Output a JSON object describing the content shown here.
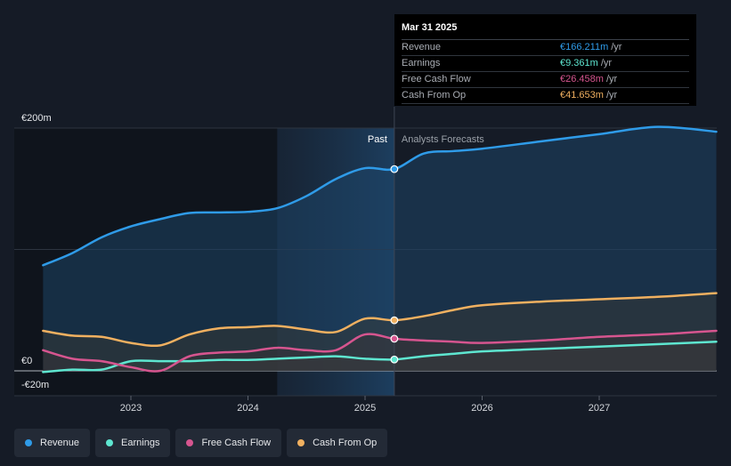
{
  "chart_data": {
    "type": "area",
    "currency_unit": "€m",
    "y_axis": {
      "min": -20,
      "max": 200,
      "labels": [
        "€200m",
        "€0",
        "-€20m"
      ]
    },
    "x_axis": {
      "ticks": [
        "2023",
        "2024",
        "2025",
        "2026",
        "2027"
      ]
    },
    "divider_date": 2025.25,
    "past_label": "Past",
    "forecast_label": "Analysts Forecasts",
    "series": [
      {
        "name": "Revenue",
        "color": "#2f9be8",
        "points": [
          [
            2022.25,
            87
          ],
          [
            2022.5,
            97
          ],
          [
            2022.75,
            110
          ],
          [
            2023.0,
            119
          ],
          [
            2023.25,
            125
          ],
          [
            2023.5,
            130
          ],
          [
            2023.75,
            130.5
          ],
          [
            2024.0,
            131
          ],
          [
            2024.25,
            134
          ],
          [
            2024.5,
            144
          ],
          [
            2024.75,
            158
          ],
          [
            2025.0,
            167
          ],
          [
            2025.25,
            166.211
          ],
          [
            2025.5,
            179
          ],
          [
            2025.75,
            181
          ],
          [
            2026.0,
            183
          ],
          [
            2026.5,
            189
          ],
          [
            2027.0,
            195
          ],
          [
            2027.5,
            201
          ],
          [
            2028.0,
            197
          ]
        ]
      },
      {
        "name": "Earnings",
        "color": "#5ee6d0",
        "points": [
          [
            2022.25,
            -1
          ],
          [
            2022.5,
            1
          ],
          [
            2022.75,
            1
          ],
          [
            2023.0,
            8
          ],
          [
            2023.25,
            8
          ],
          [
            2023.5,
            8
          ],
          [
            2023.75,
            9
          ],
          [
            2024.0,
            9
          ],
          [
            2024.25,
            10
          ],
          [
            2024.5,
            11
          ],
          [
            2024.75,
            12
          ],
          [
            2025.0,
            10
          ],
          [
            2025.25,
            9.361
          ],
          [
            2025.5,
            12
          ],
          [
            2025.75,
            14
          ],
          [
            2026.0,
            16
          ],
          [
            2026.5,
            18
          ],
          [
            2027.0,
            20
          ],
          [
            2027.5,
            22
          ],
          [
            2028.0,
            24
          ]
        ]
      },
      {
        "name": "Free Cash Flow",
        "color": "#d6558f",
        "points": [
          [
            2022.25,
            17
          ],
          [
            2022.5,
            10
          ],
          [
            2022.75,
            8
          ],
          [
            2023.0,
            3
          ],
          [
            2023.25,
            0
          ],
          [
            2023.5,
            12
          ],
          [
            2023.75,
            15
          ],
          [
            2024.0,
            16
          ],
          [
            2024.25,
            19
          ],
          [
            2024.5,
            17
          ],
          [
            2024.75,
            17
          ],
          [
            2025.0,
            30
          ],
          [
            2025.25,
            26.458
          ],
          [
            2025.5,
            25
          ],
          [
            2025.75,
            24
          ],
          [
            2026.0,
            23
          ],
          [
            2026.5,
            25
          ],
          [
            2027.0,
            28
          ],
          [
            2027.5,
            30
          ],
          [
            2028.0,
            33
          ]
        ]
      },
      {
        "name": "Cash From Op",
        "color": "#f0b060",
        "points": [
          [
            2022.25,
            33
          ],
          [
            2022.5,
            29
          ],
          [
            2022.75,
            28
          ],
          [
            2023.0,
            23
          ],
          [
            2023.25,
            21
          ],
          [
            2023.5,
            30
          ],
          [
            2023.75,
            35
          ],
          [
            2024.0,
            36
          ],
          [
            2024.25,
            37
          ],
          [
            2024.5,
            34
          ],
          [
            2024.75,
            32
          ],
          [
            2025.0,
            43
          ],
          [
            2025.25,
            41.653
          ],
          [
            2025.5,
            45
          ],
          [
            2025.75,
            50
          ],
          [
            2026.0,
            54
          ],
          [
            2026.5,
            57
          ],
          [
            2027.0,
            59
          ],
          [
            2027.5,
            61
          ],
          [
            2028.0,
            64
          ]
        ]
      }
    ]
  },
  "tooltip": {
    "date": "Mar 31 2025",
    "rows": [
      {
        "label": "Revenue",
        "value": "€166.211m",
        "unit": "/yr",
        "color": "#2f9be8"
      },
      {
        "label": "Earnings",
        "value": "€9.361m",
        "unit": "/yr",
        "color": "#5ee6d0"
      },
      {
        "label": "Free Cash Flow",
        "value": "€26.458m",
        "unit": "/yr",
        "color": "#d6558f"
      },
      {
        "label": "Cash From Op",
        "value": "€41.653m",
        "unit": "/yr",
        "color": "#f0b060"
      }
    ]
  },
  "legend": [
    {
      "label": "Revenue",
      "color": "#2f9be8"
    },
    {
      "label": "Earnings",
      "color": "#5ee6d0"
    },
    {
      "label": "Free Cash Flow",
      "color": "#d6558f"
    },
    {
      "label": "Cash From Op",
      "color": "#f0b060"
    }
  ]
}
